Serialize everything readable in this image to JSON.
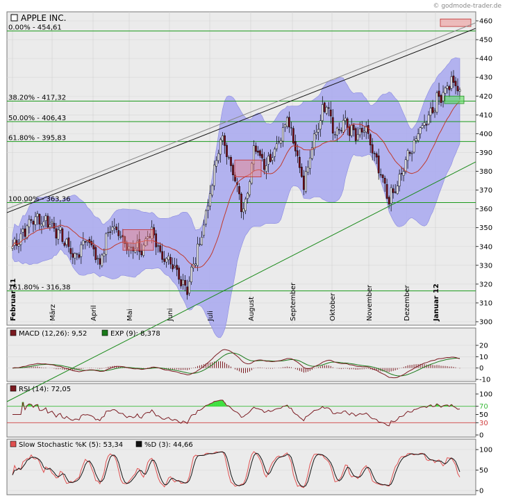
{
  "source": "© godmode-trader.de",
  "colors": {
    "panel_bg": "#ebebeb",
    "band_fill": "#a8a8f0",
    "band_edge": "#8a8ae0",
    "fib_line": "#1a9a1a",
    "candle_up": "#ffffff",
    "candle_down": "#7a0f1a",
    "ma": "#c0392b",
    "trend_black": "#111111",
    "trend_green": "#1a8a1a",
    "macd": "#7a1a20",
    "signal": "#1a7a1a",
    "rsi": "#7a1a20",
    "stoch_k": "#e05050",
    "stoch_d": "#111111"
  },
  "chart_data": [
    {
      "type": "candlestick",
      "title": "APPLE INC.",
      "ylim": [
        300,
        465
      ],
      "y_ticks": [
        300,
        310,
        320,
        330,
        340,
        350,
        360,
        370,
        380,
        390,
        400,
        410,
        420,
        430,
        440,
        450,
        460
      ],
      "x_labels": [
        "Februar 11",
        "März",
        "April",
        "Mai",
        "Juni",
        "Juli",
        "August",
        "September",
        "Oktober",
        "November",
        "Dezember",
        "Januar 12"
      ],
      "fibonacci": [
        {
          "label": "0.00% - 454,61",
          "value": 454.61
        },
        {
          "label": "38.20% - 417,32",
          "value": 417.32
        },
        {
          "label": "50.00% - 406,43",
          "value": 406.43
        },
        {
          "label": "61.80% - 395,83",
          "value": 395.83
        },
        {
          "label": "100.00% - 363,36",
          "value": 363.36
        },
        {
          "label": "161.80% - 316,38",
          "value": 316.38
        }
      ],
      "close_anchors": [
        [
          0,
          340
        ],
        [
          10,
          355
        ],
        [
          18,
          353
        ],
        [
          25,
          343
        ],
        [
          30,
          334
        ],
        [
          36,
          345
        ],
        [
          42,
          331
        ],
        [
          47,
          351
        ],
        [
          52,
          346
        ],
        [
          57,
          339
        ],
        [
          62,
          338
        ],
        [
          67,
          349
        ],
        [
          72,
          334
        ],
        [
          78,
          327
        ],
        [
          84,
          318
        ],
        [
          90,
          342
        ],
        [
          96,
          373
        ],
        [
          100,
          398
        ],
        [
          104,
          388
        ],
        [
          108,
          370
        ],
        [
          111,
          358
        ],
        [
          116,
          392
        ],
        [
          122,
          384
        ],
        [
          128,
          396
        ],
        [
          132,
          410
        ],
        [
          136,
          393
        ],
        [
          140,
          372
        ],
        [
          146,
          402
        ],
        [
          151,
          418
        ],
        [
          155,
          400
        ],
        [
          160,
          406
        ],
        [
          165,
          398
        ],
        [
          170,
          402
        ],
        [
          174,
          387
        ],
        [
          177,
          377
        ],
        [
          181,
          365
        ],
        [
          185,
          372
        ],
        [
          190,
          388
        ],
        [
          196,
          402
        ],
        [
          201,
          412
        ],
        [
          206,
          421
        ],
        [
          211,
          428
        ],
        [
          215,
          422
        ]
      ]
    },
    {
      "type": "line",
      "series": [
        {
          "name": "MACD (12,26): 9,52"
        },
        {
          "name": "EXP (9): 8,378"
        }
      ],
      "ylim": [
        -12,
        22
      ],
      "y_ticks": [
        -10,
        0,
        10,
        20
      ]
    },
    {
      "type": "line",
      "series": [
        {
          "name": "RSI (14): 72,05"
        }
      ],
      "ylim": [
        0,
        100
      ],
      "y_ticks": [
        0,
        30,
        50,
        70,
        100
      ],
      "levels": [
        30,
        70
      ]
    },
    {
      "type": "line",
      "series": [
        {
          "name": "Slow Stochastic %K (5): 53,34"
        },
        {
          "name": "%D (3): 44,66"
        }
      ],
      "ylim": [
        0,
        110
      ],
      "y_ticks": [
        0,
        50,
        100
      ]
    }
  ]
}
